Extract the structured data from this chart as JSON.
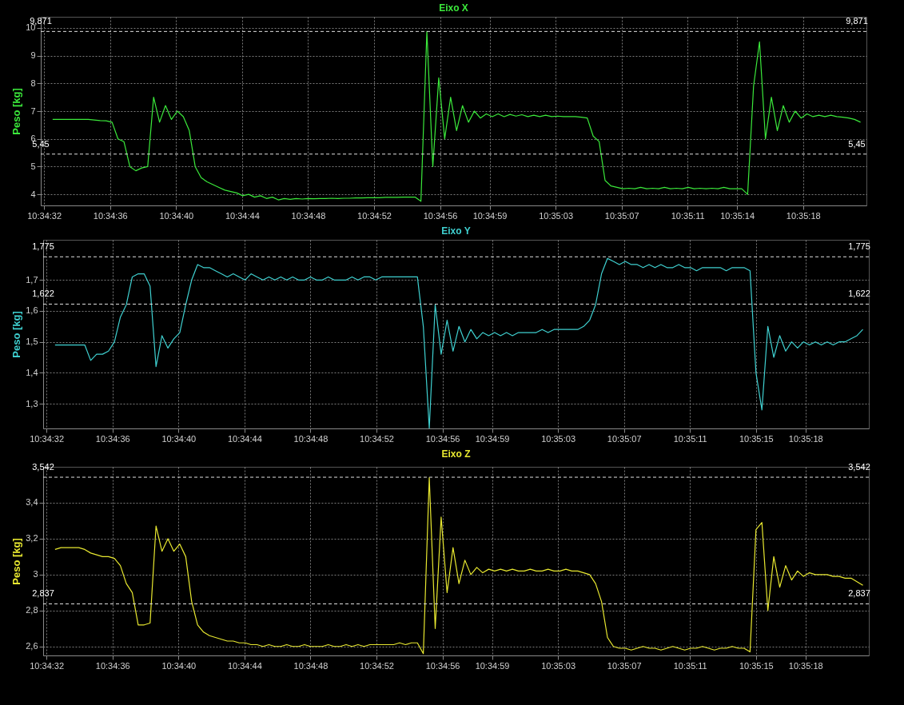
{
  "chart_data": [
    {
      "type": "line",
      "title": "Eixo X",
      "ylabel": "Peso [kg]",
      "grid": true,
      "x": [
        10.5757,
        10.5758,
        10.5759,
        10.576,
        10.5761,
        10.5762,
        10.5763,
        10.5764,
        10.5765,
        10.5766,
        10.5767,
        10.5768,
        10.5769,
        10.577,
        10.5771,
        10.5772,
        10.5773,
        10.5774,
        10.5775,
        10.5776,
        10.5777,
        10.5778,
        10.5779,
        10.578,
        10.5781,
        10.5782,
        10.5783,
        10.5784,
        10.5785,
        10.5786,
        10.5787,
        10.5788,
        10.5789,
        10.579,
        10.5791,
        10.5792,
        10.5793,
        10.5794,
        10.5795,
        10.5796,
        10.5797,
        10.5798,
        10.5799,
        10.58,
        10.5801,
        10.5802,
        10.5803,
        10.5804,
        10.5805,
        10.5806,
        10.5807,
        10.5808,
        10.5809,
        10.581,
        10.5811,
        10.5812,
        10.5813,
        10.5814,
        10.5815,
        10.5816,
        10.5817,
        10.5818,
        10.5819,
        10.582,
        10.5821,
        10.5822,
        10.5823,
        10.5824,
        10.5825,
        10.5826,
        10.5827,
        10.5828,
        10.5829,
        10.583,
        10.5831,
        10.5832,
        10.5833,
        10.5834,
        10.5835,
        10.5836,
        10.5837,
        10.5838,
        10.5839,
        10.584,
        10.5841,
        10.5842,
        10.5843,
        10.5844,
        10.5845,
        10.5846,
        10.5847,
        10.5848,
        10.5849,
        10.585,
        10.5851,
        10.5852,
        10.5853,
        10.5854,
        10.5855,
        10.5856,
        10.5857,
        10.5858,
        10.5859,
        10.586,
        10.5861,
        10.5862,
        10.5863,
        10.5864,
        10.5865,
        10.5866,
        10.5867,
        10.5868,
        10.5869,
        10.587,
        10.5871,
        10.5872,
        10.5873,
        10.5874,
        10.5875,
        10.5876,
        10.5877,
        10.5878,
        10.5879,
        10.588,
        10.5881,
        10.5882,
        10.5883,
        10.5884,
        10.5885,
        10.5886,
        10.5887,
        10.5888,
        10.5889,
        10.589,
        10.5891,
        10.5892,
        10.5893
      ],
      "series": [
        {
          "color": "#3be83b",
          "values": [
            6.7,
            6.7,
            6.7,
            6.7,
            6.7,
            6.7,
            6.7,
            6.68,
            6.66,
            6.65,
            6.6,
            6.0,
            5.9,
            5.0,
            4.85,
            4.95,
            5.0,
            7.5,
            6.6,
            7.2,
            6.7,
            7.0,
            6.8,
            6.3,
            5.0,
            4.6,
            4.45,
            4.35,
            4.25,
            4.15,
            4.1,
            4.05,
            3.95,
            4.0,
            3.9,
            3.95,
            3.85,
            3.9,
            3.8,
            3.85,
            3.82,
            3.85,
            3.83,
            3.85,
            3.84,
            3.85,
            3.85,
            3.86,
            3.85,
            3.86,
            3.86,
            3.87,
            3.87,
            3.88,
            3.88,
            3.88,
            3.89,
            3.89,
            3.89,
            3.9,
            3.9,
            3.9,
            3.75,
            9.87,
            5.0,
            8.2,
            6.0,
            7.5,
            6.3,
            7.2,
            6.6,
            7.0,
            6.75,
            6.9,
            6.8,
            6.9,
            6.8,
            6.88,
            6.82,
            6.87,
            6.8,
            6.85,
            6.8,
            6.85,
            6.8,
            6.82,
            6.8,
            6.8,
            6.8,
            6.78,
            6.75,
            6.1,
            5.9,
            4.5,
            4.3,
            4.25,
            4.2,
            4.22,
            4.2,
            4.25,
            4.2,
            4.22,
            4.2,
            4.25,
            4.2,
            4.22,
            4.2,
            4.25,
            4.2,
            4.22,
            4.2,
            4.22,
            4.2,
            4.25,
            4.2,
            4.2,
            4.2,
            4.0,
            7.9,
            9.5,
            6.0,
            7.5,
            6.3,
            7.2,
            6.6,
            7.0,
            6.75,
            6.9,
            6.8,
            6.85,
            6.8,
            6.85,
            6.8,
            6.78,
            6.75,
            6.7,
            6.6
          ]
        }
      ],
      "xlim": [
        10.5755,
        10.5894
      ],
      "xticks": [
        {
          "value": 10.575556,
          "label": "10:34:32"
        },
        {
          "value": 10.576667,
          "label": "10:34:36"
        },
        {
          "value": 10.577778,
          "label": "10:34:40"
        },
        {
          "value": 10.578889,
          "label": "10:34:44"
        },
        {
          "value": 10.58,
          "label": "10:34:48"
        },
        {
          "value": 10.581111,
          "label": "10:34:52"
        },
        {
          "value": 10.582222,
          "label": "10:34:56"
        },
        {
          "value": 10.583056,
          "label": "10:34:59"
        },
        {
          "value": 10.584167,
          "label": "10:35:03"
        },
        {
          "value": 10.585278,
          "label": "10:35:07"
        },
        {
          "value": 10.586389,
          "label": "10:35:11"
        },
        {
          "value": 10.587222,
          "label": "10:35:14"
        },
        {
          "value": 10.588333,
          "label": "10:35:18"
        }
      ],
      "ylim": [
        3.6,
        10.4
      ],
      "yticks": [
        4,
        5,
        6,
        7,
        8,
        9,
        10
      ],
      "ref_lines": [
        {
          "axis": "y",
          "value": 9.871,
          "label": "9,871",
          "line_style": "dashed"
        },
        {
          "axis": "y",
          "value": 5.45,
          "label": "5,45",
          "line_style": "dashed"
        }
      ]
    },
    {
      "type": "line",
      "title": "Eixo Y",
      "ylabel": "Peso [kg]",
      "grid": true,
      "x": [
        10.5757,
        10.5758,
        10.5759,
        10.576,
        10.5761,
        10.5762,
        10.5763,
        10.5764,
        10.5765,
        10.5766,
        10.5767,
        10.5768,
        10.5769,
        10.577,
        10.5771,
        10.5772,
        10.5773,
        10.5774,
        10.5775,
        10.5776,
        10.5777,
        10.5778,
        10.5779,
        10.578,
        10.5781,
        10.5782,
        10.5783,
        10.5784,
        10.5785,
        10.5786,
        10.5787,
        10.5788,
        10.5789,
        10.579,
        10.5791,
        10.5792,
        10.5793,
        10.5794,
        10.5795,
        10.5796,
        10.5797,
        10.5798,
        10.5799,
        10.58,
        10.5801,
        10.5802,
        10.5803,
        10.5804,
        10.5805,
        10.5806,
        10.5807,
        10.5808,
        10.5809,
        10.581,
        10.5811,
        10.5812,
        10.5813,
        10.5814,
        10.5815,
        10.5816,
        10.5817,
        10.5818,
        10.5819,
        10.582,
        10.5821,
        10.5822,
        10.5823,
        10.5824,
        10.5825,
        10.5826,
        10.5827,
        10.5828,
        10.5829,
        10.583,
        10.5831,
        10.5832,
        10.5833,
        10.5834,
        10.5835,
        10.5836,
        10.5837,
        10.5838,
        10.5839,
        10.584,
        10.5841,
        10.5842,
        10.5843,
        10.5844,
        10.5845,
        10.5846,
        10.5847,
        10.5848,
        10.5849,
        10.585,
        10.5851,
        10.5852,
        10.5853,
        10.5854,
        10.5855,
        10.5856,
        10.5857,
        10.5858,
        10.5859,
        10.586,
        10.5861,
        10.5862,
        10.5863,
        10.5864,
        10.5865,
        10.5866,
        10.5867,
        10.5868,
        10.5869,
        10.587,
        10.5871,
        10.5872,
        10.5873,
        10.5874,
        10.5875,
        10.5876,
        10.5877,
        10.5878,
        10.5879,
        10.588,
        10.5881,
        10.5882,
        10.5883,
        10.5884,
        10.5885,
        10.5886,
        10.5887,
        10.5888,
        10.5889,
        10.589,
        10.5891,
        10.5892,
        10.5893
      ],
      "series": [
        {
          "color": "#3fd0d0",
          "values": [
            1.49,
            1.49,
            1.49,
            1.49,
            1.49,
            1.49,
            1.44,
            1.46,
            1.46,
            1.47,
            1.5,
            1.58,
            1.62,
            1.71,
            1.72,
            1.72,
            1.68,
            1.42,
            1.52,
            1.48,
            1.51,
            1.53,
            1.62,
            1.7,
            1.75,
            1.74,
            1.74,
            1.73,
            1.72,
            1.71,
            1.72,
            1.71,
            1.7,
            1.72,
            1.71,
            1.7,
            1.71,
            1.7,
            1.71,
            1.7,
            1.71,
            1.7,
            1.7,
            1.71,
            1.7,
            1.7,
            1.71,
            1.7,
            1.7,
            1.7,
            1.71,
            1.7,
            1.71,
            1.71,
            1.7,
            1.71,
            1.71,
            1.71,
            1.71,
            1.71,
            1.71,
            1.71,
            1.55,
            1.22,
            1.62,
            1.46,
            1.57,
            1.47,
            1.55,
            1.5,
            1.54,
            1.51,
            1.53,
            1.52,
            1.53,
            1.52,
            1.53,
            1.52,
            1.53,
            1.53,
            1.53,
            1.53,
            1.54,
            1.53,
            1.54,
            1.54,
            1.54,
            1.54,
            1.54,
            1.55,
            1.57,
            1.62,
            1.72,
            1.77,
            1.76,
            1.75,
            1.76,
            1.75,
            1.75,
            1.74,
            1.75,
            1.74,
            1.75,
            1.74,
            1.74,
            1.75,
            1.74,
            1.74,
            1.73,
            1.74,
            1.74,
            1.74,
            1.74,
            1.73,
            1.74,
            1.74,
            1.74,
            1.73,
            1.4,
            1.28,
            1.55,
            1.45,
            1.52,
            1.47,
            1.5,
            1.48,
            1.5,
            1.49,
            1.5,
            1.49,
            1.5,
            1.49,
            1.5,
            1.5,
            1.51,
            1.52,
            1.54
          ]
        }
      ],
      "xlim": [
        10.5755,
        10.5894
      ],
      "xticks": [
        {
          "value": 10.575556,
          "label": "10:34:32"
        },
        {
          "value": 10.576667,
          "label": "10:34:36"
        },
        {
          "value": 10.577778,
          "label": "10:34:40"
        },
        {
          "value": 10.578889,
          "label": "10:34:44"
        },
        {
          "value": 10.58,
          "label": "10:34:48"
        },
        {
          "value": 10.581111,
          "label": "10:34:52"
        },
        {
          "value": 10.582222,
          "label": "10:34:56"
        },
        {
          "value": 10.583056,
          "label": "10:34:59"
        },
        {
          "value": 10.584167,
          "label": "10:35:03"
        },
        {
          "value": 10.585278,
          "label": "10:35:07"
        },
        {
          "value": 10.586389,
          "label": "10:35:11"
        },
        {
          "value": 10.5875,
          "label": "10:35:15"
        },
        {
          "value": 10.588333,
          "label": "10:35:18"
        }
      ],
      "ylim": [
        1.22,
        1.83
      ],
      "yticks": [
        {
          "value": 1.3,
          "label": "1,3"
        },
        {
          "value": 1.4,
          "label": "1,4"
        },
        {
          "value": 1.5,
          "label": "1,5"
        },
        {
          "value": 1.6,
          "label": "1,6"
        },
        {
          "value": 1.7,
          "label": "1,7"
        }
      ],
      "ref_lines": [
        {
          "axis": "y",
          "value": 1.775,
          "label": "1,775",
          "line_style": "dashed"
        },
        {
          "axis": "y",
          "value": 1.622,
          "label": "1,622",
          "line_style": "dashed"
        }
      ]
    },
    {
      "type": "line",
      "title": "Eixo Z",
      "ylabel": "Peso [kg]",
      "grid": true,
      "x": [
        10.5757,
        10.5758,
        10.5759,
        10.576,
        10.5761,
        10.5762,
        10.5763,
        10.5764,
        10.5765,
        10.5766,
        10.5767,
        10.5768,
        10.5769,
        10.577,
        10.5771,
        10.5772,
        10.5773,
        10.5774,
        10.5775,
        10.5776,
        10.5777,
        10.5778,
        10.5779,
        10.578,
        10.5781,
        10.5782,
        10.5783,
        10.5784,
        10.5785,
        10.5786,
        10.5787,
        10.5788,
        10.5789,
        10.579,
        10.5791,
        10.5792,
        10.5793,
        10.5794,
        10.5795,
        10.5796,
        10.5797,
        10.5798,
        10.5799,
        10.58,
        10.5801,
        10.5802,
        10.5803,
        10.5804,
        10.5805,
        10.5806,
        10.5807,
        10.5808,
        10.5809,
        10.581,
        10.5811,
        10.5812,
        10.5813,
        10.5814,
        10.5815,
        10.5816,
        10.5817,
        10.5818,
        10.5819,
        10.582,
        10.5821,
        10.5822,
        10.5823,
        10.5824,
        10.5825,
        10.5826,
        10.5827,
        10.5828,
        10.5829,
        10.583,
        10.5831,
        10.5832,
        10.5833,
        10.5834,
        10.5835,
        10.5836,
        10.5837,
        10.5838,
        10.5839,
        10.584,
        10.5841,
        10.5842,
        10.5843,
        10.5844,
        10.5845,
        10.5846,
        10.5847,
        10.5848,
        10.5849,
        10.585,
        10.5851,
        10.5852,
        10.5853,
        10.5854,
        10.5855,
        10.5856,
        10.5857,
        10.5858,
        10.5859,
        10.586,
        10.5861,
        10.5862,
        10.5863,
        10.5864,
        10.5865,
        10.5866,
        10.5867,
        10.5868,
        10.5869,
        10.587,
        10.5871,
        10.5872,
        10.5873,
        10.5874,
        10.5875,
        10.5876,
        10.5877,
        10.5878,
        10.5879,
        10.588,
        10.5881,
        10.5882,
        10.5883,
        10.5884,
        10.5885,
        10.5886,
        10.5887,
        10.5888,
        10.5889,
        10.589,
        10.5891,
        10.5892,
        10.5893
      ],
      "series": [
        {
          "color": "#e8e830",
          "values": [
            3.14,
            3.15,
            3.15,
            3.15,
            3.15,
            3.14,
            3.12,
            3.11,
            3.1,
            3.1,
            3.09,
            3.05,
            2.95,
            2.9,
            2.72,
            2.72,
            2.73,
            3.27,
            3.13,
            3.2,
            3.13,
            3.17,
            3.1,
            2.85,
            2.72,
            2.68,
            2.66,
            2.65,
            2.64,
            2.63,
            2.63,
            2.62,
            2.62,
            2.61,
            2.61,
            2.6,
            2.61,
            2.6,
            2.6,
            2.61,
            2.6,
            2.6,
            2.61,
            2.6,
            2.6,
            2.6,
            2.61,
            2.6,
            2.6,
            2.61,
            2.6,
            2.61,
            2.6,
            2.61,
            2.61,
            2.61,
            2.61,
            2.61,
            2.62,
            2.61,
            2.62,
            2.62,
            2.56,
            3.54,
            2.7,
            3.32,
            2.9,
            3.15,
            2.95,
            3.08,
            3.0,
            3.04,
            3.01,
            3.03,
            3.02,
            3.03,
            3.02,
            3.03,
            3.02,
            3.02,
            3.03,
            3.02,
            3.02,
            3.03,
            3.02,
            3.02,
            3.03,
            3.02,
            3.02,
            3.01,
            3.0,
            2.95,
            2.85,
            2.65,
            2.6,
            2.59,
            2.59,
            2.58,
            2.59,
            2.6,
            2.59,
            2.59,
            2.58,
            2.59,
            2.6,
            2.59,
            2.58,
            2.59,
            2.59,
            2.6,
            2.59,
            2.58,
            2.59,
            2.59,
            2.6,
            2.59,
            2.59,
            2.57,
            3.25,
            3.29,
            2.8,
            3.1,
            2.93,
            3.05,
            2.97,
            3.02,
            2.99,
            3.01,
            3.0,
            3.0,
            3.0,
            2.99,
            2.99,
            2.98,
            2.98,
            2.96,
            2.94
          ]
        }
      ],
      "xlim": [
        10.5755,
        10.5894
      ],
      "xticks": [
        {
          "value": 10.575556,
          "label": "10:34:32"
        },
        {
          "value": 10.576667,
          "label": "10:34:36"
        },
        {
          "value": 10.577778,
          "label": "10:34:40"
        },
        {
          "value": 10.578889,
          "label": "10:34:44"
        },
        {
          "value": 10.58,
          "label": "10:34:48"
        },
        {
          "value": 10.581111,
          "label": "10:34:52"
        },
        {
          "value": 10.582222,
          "label": "10:34:56"
        },
        {
          "value": 10.583056,
          "label": "10:34:59"
        },
        {
          "value": 10.584167,
          "label": "10:35:03"
        },
        {
          "value": 10.585278,
          "label": "10:35:07"
        },
        {
          "value": 10.586389,
          "label": "10:35:11"
        },
        {
          "value": 10.5875,
          "label": "10:35:15"
        },
        {
          "value": 10.588333,
          "label": "10:35:18"
        }
      ],
      "ylim": [
        2.55,
        3.6
      ],
      "yticks": [
        {
          "value": 2.6,
          "label": "2,6"
        },
        {
          "value": 2.8,
          "label": "2,8"
        },
        3,
        {
          "value": 3.2,
          "label": "3,2"
        },
        {
          "value": 3.4,
          "label": "3,4"
        }
      ],
      "ref_lines": [
        {
          "axis": "y",
          "value": 3.542,
          "label": "3,542",
          "line_style": "dashed"
        },
        {
          "axis": "y",
          "value": 2.837,
          "label": "2,837",
          "line_style": "dashed"
        }
      ]
    }
  ]
}
